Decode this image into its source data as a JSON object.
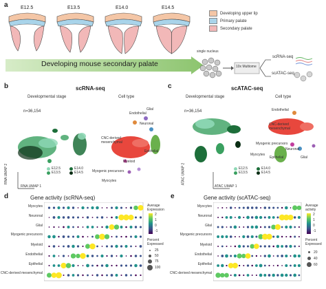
{
  "panels": {
    "a": {
      "label": "a",
      "stages": [
        "E12.5",
        "E13.5",
        "E14.0",
        "E14.5"
      ],
      "legend": [
        {
          "label": "Developing upper lip",
          "color": "#f4c6a6"
        },
        {
          "label": "Primary palate",
          "color": "#a9d4ea"
        },
        {
          "label": "Secondary palate",
          "color": "#f2b8b8"
        }
      ],
      "arrow_text": "Developing mouse secondary palate",
      "single_nucleus": "single nucleus",
      "multiome": "10x Multiome",
      "scrna": "scRNA-seq",
      "scatac": "scATAC-seq"
    },
    "b": {
      "label": "b",
      "title": "scRNA-seq",
      "subtitle_stage": "Developmental stage",
      "subtitle_cell": "Cell type",
      "n": "n=36,154",
      "axis_x": "RNA UMAP 1",
      "axis_y": "RNA UMAP 2",
      "stage_legend": [
        {
          "label": "E12.5",
          "color": "#8fd8b6"
        },
        {
          "label": "E13.5",
          "color": "#3aa060"
        },
        {
          "label": "E14.0",
          "color": "#1d6e3a"
        },
        {
          "label": "E14.5",
          "color": "#0b2e15"
        }
      ],
      "celltype_labels": [
        "Endothelial",
        "Glial",
        "Neuronal",
        "CNC-derived mesenchymal",
        "Epithelial",
        "Myeloid",
        "Myogenic precursors",
        "Myocytes"
      ]
    },
    "c": {
      "label": "c",
      "title": "scATAC-seq",
      "subtitle_stage": "Developmental stage",
      "subtitle_cell": "Cell type",
      "n": "n=36,154",
      "axis_x": "ATAC UMAP 1",
      "axis_y": "ATAC UMAP 2",
      "stage_legend": [
        {
          "label": "E12.5",
          "color": "#8fd8b6"
        },
        {
          "label": "E13.5",
          "color": "#3aa060"
        },
        {
          "label": "E14.0",
          "color": "#1d6e3a"
        },
        {
          "label": "E14.5",
          "color": "#0b2e15"
        }
      ],
      "celltype_labels": [
        "Endothelial",
        "CNC-derived mesenchymal",
        "Myogenic precursors",
        "Neuronal",
        "Myocytes",
        "Epithelial",
        "Glial"
      ]
    },
    "d": {
      "label": "d",
      "title": "Gene activity (scRNA-seq)",
      "rows": [
        "Myocytes",
        "Neuronal",
        "Glial",
        "Myogenic precursors",
        "Myeloid",
        "Endothelial",
        "Epithelial",
        "CNC-derived mesenchymal"
      ],
      "colorbar_title": "Average Expression",
      "colorbar_ticks": [
        "2",
        "1",
        "0",
        "-1"
      ],
      "size_title": "Percent Expressed",
      "size_ticks": [
        "25",
        "50",
        "75",
        "100"
      ]
    },
    "e": {
      "label": "e",
      "title": "Gene activity (scATAC-seq)",
      "rows": [
        "Myocytes",
        "Neuronal",
        "Glial",
        "Myogenic precursors",
        "Myeloid",
        "Endothelial",
        "Epithelial",
        "CNC-derived mesenchymal"
      ],
      "colorbar_title": "Average activity",
      "colorbar_ticks": [
        "2",
        "1",
        "0",
        "-1"
      ],
      "size_title": "Percent Expressed",
      "size_ticks": [
        "20",
        "40",
        "60"
      ]
    }
  },
  "colors": {
    "mesenchymal_red": "#e8473d",
    "epithelial_green": "#6ab04c",
    "arrow_green": "#a6d189",
    "viridis": [
      "#440154",
      "#3b528b",
      "#21918c",
      "#5ec962",
      "#fde725"
    ]
  },
  "chart_data": [
    {
      "type": "scatter",
      "title": "Gene activity (scRNA-seq)",
      "categories_y": [
        "Myocytes",
        "Neuronal",
        "Glial",
        "Myogenic precursors",
        "Myeloid",
        "Endothelial",
        "Epithelial",
        "CNC-derived mesenchymal"
      ],
      "n_genes": 20,
      "grid": false,
      "legend_placement": "right"
    },
    {
      "type": "scatter",
      "title": "Gene activity (scATAC-seq)",
      "categories_y": [
        "Myocytes",
        "Neuronal",
        "Glial",
        "Myogenic precursors",
        "Myeloid",
        "Endothelial",
        "Epithelial",
        "CNC-derived mesenchymal"
      ],
      "n_genes": 20,
      "grid": false,
      "legend_placement": "right"
    }
  ]
}
